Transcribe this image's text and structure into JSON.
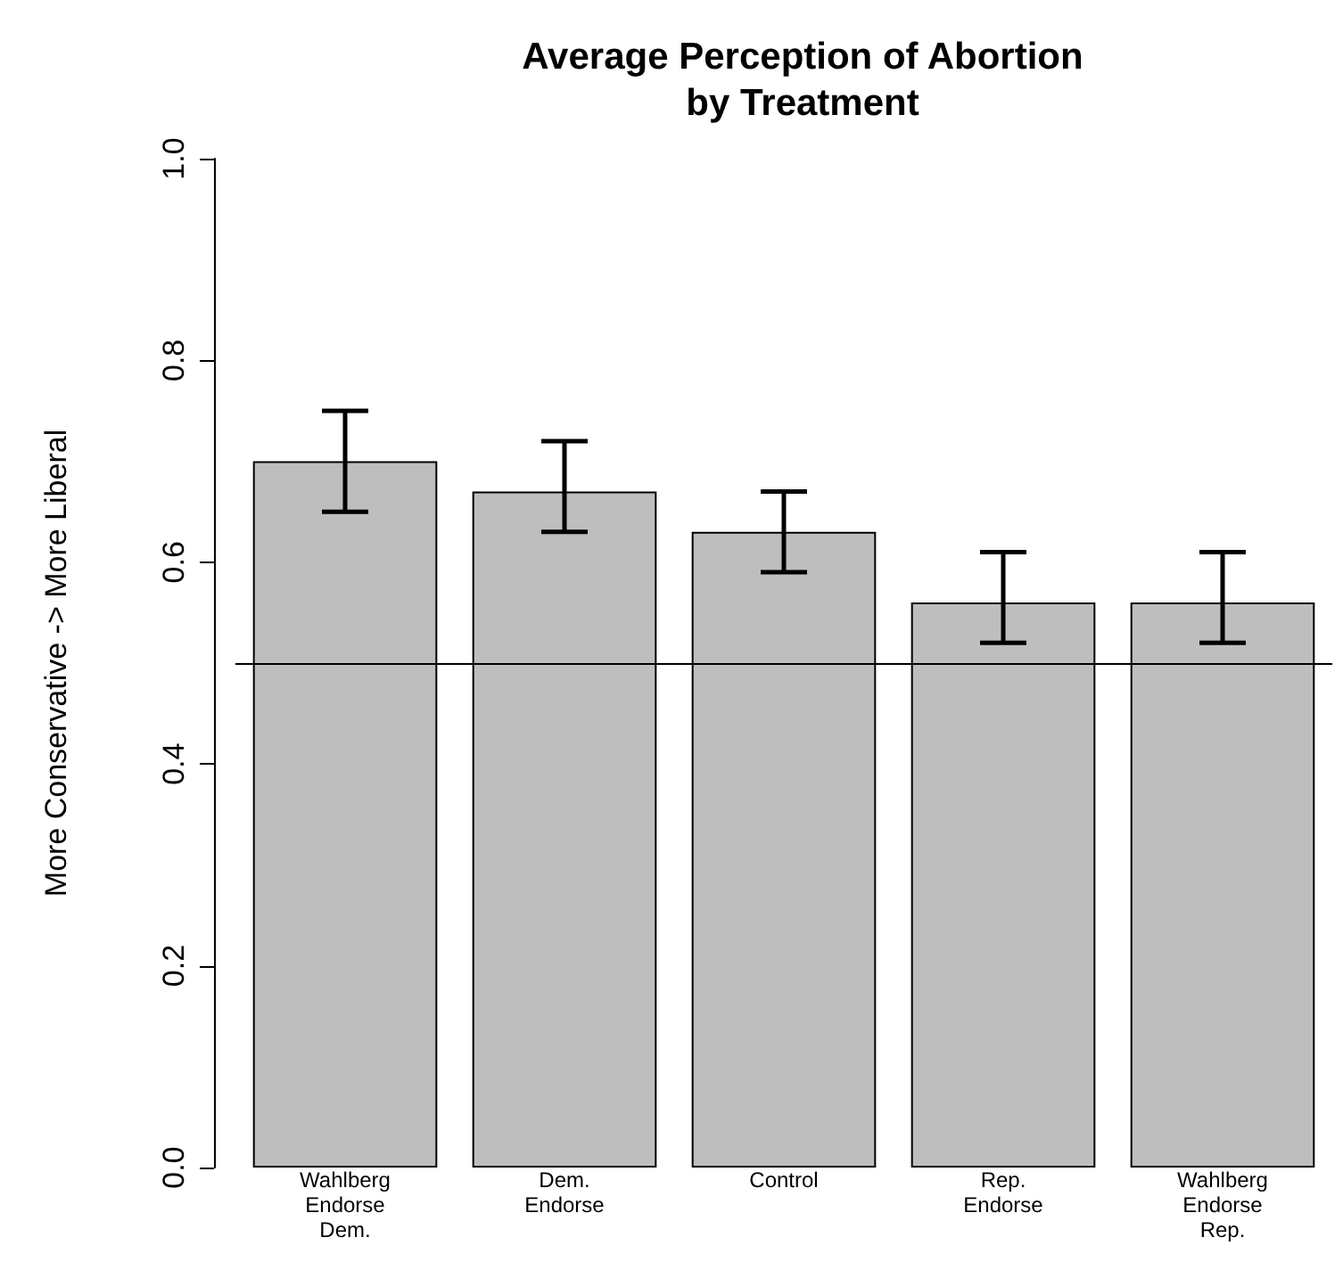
{
  "chart_data": {
    "type": "bar",
    "title": "Average Perception of Abortion\nby Treatment",
    "ylabel": "More Conservative -> More Liberal",
    "categories": [
      "Wahlberg\nEndorse\nDem.",
      "Dem.\nEndorse",
      "Control",
      "Rep.\nEndorse",
      "Wahlberg\nEndorse\nRep."
    ],
    "values": [
      0.7,
      0.67,
      0.63,
      0.56,
      0.56
    ],
    "color": "#bebebe",
    "errors": [
      [
        0.65,
        0.75
      ],
      [
        0.63,
        0.72
      ],
      [
        0.59,
        0.67
      ],
      [
        0.52,
        0.61
      ],
      [
        0.52,
        0.61
      ]
    ],
    "ylim": [
      0,
      1
    ],
    "yticks": [
      {
        "value": 0,
        "label": "0.0"
      },
      {
        "value": 0.2,
        "label": "0.2"
      },
      {
        "value": 0.4,
        "label": "0.4"
      },
      {
        "value": 0.6,
        "label": "0.6"
      },
      {
        "value": 0.8,
        "label": "0.8"
      },
      {
        "value": 1,
        "label": "1.0"
      }
    ],
    "ref_lines": [
      {
        "axis": "y",
        "value": 0.5,
        "color": "#000000"
      }
    ],
    "data_labels": false
  }
}
